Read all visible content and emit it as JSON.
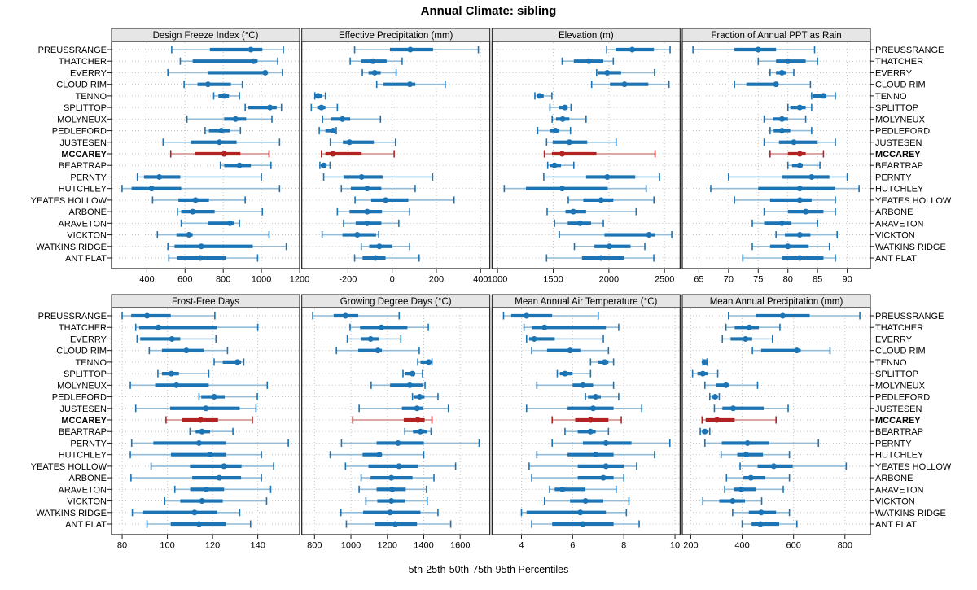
{
  "title": "Annual Climate: sibling",
  "caption": "5th-25th-50th-75th-95th Percentiles",
  "percentiles": [
    "5th",
    "25th",
    "50th",
    "75th",
    "95th"
  ],
  "stations": [
    "PREUSSRANGE",
    "THATCHER",
    "EVERRY",
    "CLOUD RIM",
    "TENNO",
    "SPLITTOP",
    "MOLYNEUX",
    "PEDLEFORD",
    "JUSTESEN",
    "MCCAREY",
    "BEARTRAP",
    "PERNTY",
    "HUTCHLEY",
    "YEATES HOLLOW",
    "ARBONE",
    "ARAVETON",
    "VICKTON",
    "WATKINS RIDGE",
    "ANT FLAT"
  ],
  "highlight_station": "MCCAREY",
  "colors": {
    "blue": "#1c74b4",
    "blue_light": "#92bcd8",
    "red": "#b22222",
    "red_light": "#d08c86",
    "grid": "#c3c3c3",
    "strip_bg": "#e6e6e6",
    "border": "#1a1a1a"
  },
  "chart_data": [
    {
      "type": "interval",
      "row": 0,
      "col": 0,
      "title": "Design Freeze Index (°C)",
      "xlim": [
        215,
        1200
      ],
      "ticks": [
        400,
        600,
        800,
        1000,
        1200
      ],
      "values": [
        [
          530,
          730,
          945,
          1005,
          1115
        ],
        [
          575,
          640,
          960,
          980,
          1085
        ],
        [
          510,
          720,
          1020,
          1030,
          1110
        ],
        [
          595,
          665,
          720,
          840,
          900
        ],
        [
          750,
          775,
          805,
          830,
          885
        ],
        [
          915,
          930,
          1045,
          1080,
          1105
        ],
        [
          610,
          805,
          865,
          920,
          1055
        ],
        [
          705,
          725,
          790,
          835,
          890
        ],
        [
          485,
          630,
          780,
          870,
          1095
        ],
        [
          525,
          650,
          805,
          890,
          1040
        ],
        [
          785,
          805,
          885,
          945,
          1050
        ],
        [
          350,
          385,
          465,
          575,
          1000
        ],
        [
          270,
          320,
          425,
          580,
          1095
        ],
        [
          430,
          565,
          655,
          725,
          915
        ],
        [
          560,
          580,
          640,
          755,
          1005
        ],
        [
          580,
          720,
          835,
          855,
          885
        ],
        [
          455,
          555,
          620,
          640,
          1040
        ],
        [
          510,
          545,
          685,
          955,
          1130
        ],
        [
          515,
          560,
          680,
          815,
          980
        ]
      ]
    },
    {
      "type": "interval",
      "row": 0,
      "col": 1,
      "title": "Effective Precipitation (mm)",
      "xlim": [
        -409,
        442
      ],
      "ticks": [
        -200,
        0,
        200,
        400
      ],
      "values": [
        [
          -170,
          -10,
          82,
          185,
          390
        ],
        [
          -190,
          -140,
          -87,
          -25,
          45
        ],
        [
          -135,
          -107,
          -79,
          -52,
          18
        ],
        [
          -70,
          -40,
          80,
          105,
          240
        ],
        [
          -350,
          -347,
          -335,
          -319,
          -302
        ],
        [
          -366,
          -339,
          -320,
          -302,
          -248
        ],
        [
          -315,
          -275,
          -225,
          -190,
          -53
        ],
        [
          -330,
          -302,
          -267,
          -262,
          -253
        ],
        [
          -280,
          -223,
          -193,
          -83,
          15
        ],
        [
          -320,
          -302,
          -268,
          -138,
          9
        ],
        [
          -327,
          -323,
          -309,
          -299,
          -281
        ],
        [
          -310,
          -220,
          -138,
          -43,
          183
        ],
        [
          -230,
          -187,
          -113,
          -49,
          104
        ],
        [
          -168,
          -95,
          -30,
          73,
          280
        ],
        [
          -248,
          -193,
          -113,
          -46,
          79
        ],
        [
          -220,
          -165,
          -113,
          -49,
          30
        ],
        [
          -317,
          -225,
          -158,
          -73,
          -61
        ],
        [
          -140,
          -104,
          -58,
          0,
          79
        ],
        [
          -170,
          -134,
          -77,
          -30,
          122
        ]
      ]
    },
    {
      "type": "interval",
      "row": 0,
      "col": 2,
      "title": "Elevation (m)",
      "xlim": [
        950,
        2640
      ],
      "ticks": [
        1000,
        1500,
        2000,
        2500
      ],
      "values": [
        [
          1980,
          2060,
          2210,
          2405,
          2550
        ],
        [
          1580,
          1685,
          1820,
          1950,
          2040
        ],
        [
          1890,
          1905,
          1985,
          2110,
          2410
        ],
        [
          1845,
          2010,
          2140,
          2355,
          2540
        ],
        [
          1335,
          1353,
          1377,
          1414,
          1488
        ],
        [
          1470,
          1550,
          1605,
          1630,
          1660
        ],
        [
          1490,
          1525,
          1585,
          1645,
          1795
        ],
        [
          1360,
          1470,
          1520,
          1555,
          1655
        ],
        [
          1440,
          1495,
          1645,
          1805,
          2065
        ],
        [
          1420,
          1488,
          1580,
          1888,
          2415
        ],
        [
          1450,
          1470,
          1512,
          1570,
          1685
        ],
        [
          1415,
          1795,
          1985,
          2237,
          2455
        ],
        [
          1060,
          1255,
          1580,
          1990,
          2335
        ],
        [
          1635,
          1770,
          1930,
          2040,
          2405
        ],
        [
          1445,
          1610,
          1680,
          1795,
          2245
        ],
        [
          1512,
          1630,
          1740,
          1840,
          1950
        ],
        [
          1555,
          1960,
          2360,
          2415,
          2565
        ],
        [
          1690,
          1870,
          2005,
          2195,
          2323
        ],
        [
          1440,
          1758,
          1930,
          2134,
          2404
        ]
      ]
    },
    {
      "type": "interval",
      "row": 0,
      "col": 3,
      "title": "Fraction of Annual PPT as Rain",
      "xlim": [
        62.2,
        93.9
      ],
      "ticks": [
        65,
        70,
        75,
        80,
        85,
        90
      ],
      "values": [
        [
          64,
          71,
          75,
          78,
          84.5
        ],
        [
          75,
          78,
          80,
          83,
          85
        ],
        [
          77,
          78,
          79,
          79.7,
          81
        ],
        [
          71,
          73,
          78,
          78.3,
          83.8
        ],
        [
          84,
          84.2,
          86,
          86.5,
          88
        ],
        [
          80,
          80.4,
          82,
          83,
          84
        ],
        [
          76,
          77.5,
          79,
          80,
          83
        ],
        [
          77,
          77.6,
          79,
          80.4,
          84
        ],
        [
          76,
          78.5,
          81,
          85,
          88
        ],
        [
          77,
          80,
          82,
          83,
          86
        ],
        [
          80,
          80.7,
          82,
          82.5,
          85.4
        ],
        [
          70,
          79,
          84,
          87,
          90
        ],
        [
          67,
          75,
          82,
          88,
          92
        ],
        [
          71,
          77,
          82,
          84,
          88
        ],
        [
          76,
          80,
          83,
          86,
          88
        ],
        [
          74,
          76,
          79,
          80.6,
          85
        ],
        [
          78,
          79.5,
          82,
          83.8,
          88.3
        ],
        [
          74,
          77,
          80,
          83.5,
          87
        ],
        [
          72.4,
          79,
          82,
          86,
          88
        ]
      ]
    },
    {
      "type": "interval",
      "row": 1,
      "col": 0,
      "title": "Frost-Free Days",
      "xlim": [
        75.3,
        158.5
      ],
      "ticks": [
        80,
        100,
        120,
        140
      ],
      "values": [
        [
          80,
          84,
          91,
          101.5,
          121
        ],
        [
          86,
          87.5,
          96,
          122,
          140
        ],
        [
          86.6,
          88,
          102,
          105.7,
          121.5
        ],
        [
          92,
          97.6,
          108.4,
          116,
          126.6
        ],
        [
          120.7,
          124.5,
          131,
          132.6,
          133.8
        ],
        [
          95.8,
          97.6,
          101.8,
          105.1,
          118.3
        ],
        [
          83.6,
          94.6,
          104,
          118.3,
          144.2
        ],
        [
          114,
          115,
          120.7,
          125.4,
          139.8
        ],
        [
          86,
          101.2,
          117,
          132,
          139.2
        ],
        [
          99.4,
          106.6,
          114.7,
          122.4,
          137.6
        ],
        [
          110,
          112.5,
          115.3,
          118.9,
          129
        ],
        [
          84.2,
          93.8,
          114,
          125.7,
          153.5
        ],
        [
          83.6,
          101.6,
          118.9,
          126,
          141.6
        ],
        [
          92.8,
          110,
          125,
          132.8,
          147
        ],
        [
          83.9,
          111,
          123,
          132.6,
          141.6
        ],
        [
          103.3,
          110.1,
          117.3,
          125.1,
          145.7
        ],
        [
          98.8,
          105.7,
          115.3,
          124.5,
          143.9
        ],
        [
          84.5,
          89.3,
          112,
          122.1,
          132
        ],
        [
          91,
          101.5,
          114,
          126,
          136.8
        ]
      ]
    },
    {
      "type": "interval",
      "row": 1,
      "col": 1,
      "title": "Growing Degree Days (°C)",
      "xlim": [
        730,
        1763
      ],
      "ticks": [
        800,
        1000,
        1200,
        1400,
        1600
      ],
      "values": [
        [
          790,
          905,
          970,
          1040,
          1265
        ],
        [
          995,
          1050,
          1167,
          1310,
          1425
        ],
        [
          980,
          1055,
          1108,
          1153,
          1274
        ],
        [
          920,
          1040,
          1148,
          1170,
          1375
        ],
        [
          1367,
          1382,
          1427,
          1441,
          1445
        ],
        [
          1286,
          1296,
          1338,
          1353,
          1393
        ],
        [
          1111,
          1215,
          1323,
          1393,
          1407
        ],
        [
          1338,
          1348,
          1378,
          1404,
          1478
        ],
        [
          1045,
          1280,
          1363,
          1395,
          1535
        ],
        [
          1010,
          1290,
          1367,
          1405,
          1445
        ],
        [
          1296,
          1341,
          1382,
          1420,
          1440
        ],
        [
          948,
          1141,
          1259,
          1400,
          1704
        ],
        [
          886,
          1064,
          1156,
          1170,
          1400
        ],
        [
          970,
          1096,
          1264,
          1367,
          1575
        ],
        [
          1056,
          1108,
          1222,
          1338,
          1456
        ],
        [
          1045,
          1141,
          1227,
          1301,
          1415
        ],
        [
          1082,
          1145,
          1222,
          1296,
          1419
        ],
        [
          945,
          1067,
          1215,
          1382,
          1478
        ],
        [
          975,
          1130,
          1244,
          1363,
          1548
        ]
      ]
    },
    {
      "type": "interval",
      "row": 1,
      "col": 2,
      "title": "Mean Annual Air Temperature (°C)",
      "xlim": [
        2.85,
        10.2
      ],
      "ticks": [
        4,
        6,
        8,
        10
      ],
      "values": [
        [
          3.3,
          3.6,
          4.2,
          5.2,
          7.0
        ],
        [
          4.1,
          4.4,
          4.9,
          7.3,
          7.8
        ],
        [
          4.2,
          4.3,
          4.5,
          5.3,
          7.2
        ],
        [
          4.4,
          5.0,
          5.9,
          6.3,
          7.4
        ],
        [
          6.7,
          7.0,
          7.25,
          7.4,
          7.6
        ],
        [
          5.4,
          5.5,
          5.7,
          6.0,
          6.7
        ],
        [
          4.6,
          6.0,
          6.4,
          6.8,
          7.6
        ],
        [
          6.5,
          6.6,
          6.9,
          7.1,
          7.8
        ],
        [
          4.2,
          5.8,
          6.8,
          7.6,
          8.7
        ],
        [
          5.2,
          6.1,
          6.7,
          7.4,
          7.9
        ],
        [
          5.7,
          6.2,
          6.7,
          6.9,
          7.4
        ],
        [
          5.2,
          6.4,
          7.3,
          8.3,
          9.8
        ],
        [
          4.6,
          5.8,
          6.9,
          7.6,
          9.2
        ],
        [
          4.3,
          6.2,
          7.3,
          8.0,
          8.5
        ],
        [
          4.4,
          6.2,
          7.2,
          7.6,
          8.0
        ],
        [
          5.1,
          5.3,
          5.6,
          6.5,
          7.7
        ],
        [
          4.9,
          5.9,
          6.5,
          7.2,
          8.2
        ],
        [
          4.0,
          4.2,
          6.3,
          7.3,
          8.1
        ],
        [
          4.4,
          5.2,
          6.4,
          7.6,
          8.6
        ]
      ]
    },
    {
      "type": "interval",
      "row": 1,
      "col": 3,
      "title": "Mean Annual Precipitation (mm)",
      "xlim": [
        167,
        899
      ],
      "ticks": [
        200,
        400,
        600,
        800
      ],
      "values": [
        [
          347,
          453,
          558,
          663,
          858
        ],
        [
          337,
          371,
          428,
          465,
          547
        ],
        [
          323,
          355,
          413,
          439,
          518
        ],
        [
          440,
          474,
          613,
          628,
          742
        ],
        [
          247,
          249,
          253,
          260,
          263
        ],
        [
          207,
          226,
          247,
          265,
          305
        ],
        [
          255,
          300,
          337,
          350,
          460
        ],
        [
          274,
          281,
          295,
          305,
          311
        ],
        [
          292,
          323,
          365,
          484,
          579
        ],
        [
          244,
          258,
          302,
          371,
          532
        ],
        [
          237,
          244,
          255,
          263,
          274
        ],
        [
          255,
          321,
          421,
          505,
          697
        ],
        [
          318,
          381,
          416,
          481,
          584
        ],
        [
          392,
          460,
          523,
          597,
          805
        ],
        [
          339,
          405,
          434,
          489,
          584
        ],
        [
          332,
          368,
          397,
          453,
          560
        ],
        [
          247,
          311,
          363,
          411,
          476
        ],
        [
          363,
          426,
          474,
          532,
          584
        ],
        [
          400,
          437,
          471,
          544,
          613
        ]
      ]
    }
  ]
}
